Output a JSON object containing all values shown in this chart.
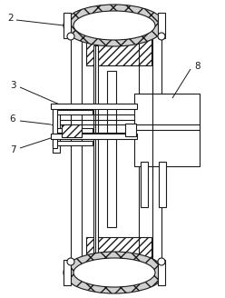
{
  "bg_color": "#ffffff",
  "line_color": "#1a1a1a",
  "fig_width": 2.48,
  "fig_height": 3.28,
  "dpi": 100
}
